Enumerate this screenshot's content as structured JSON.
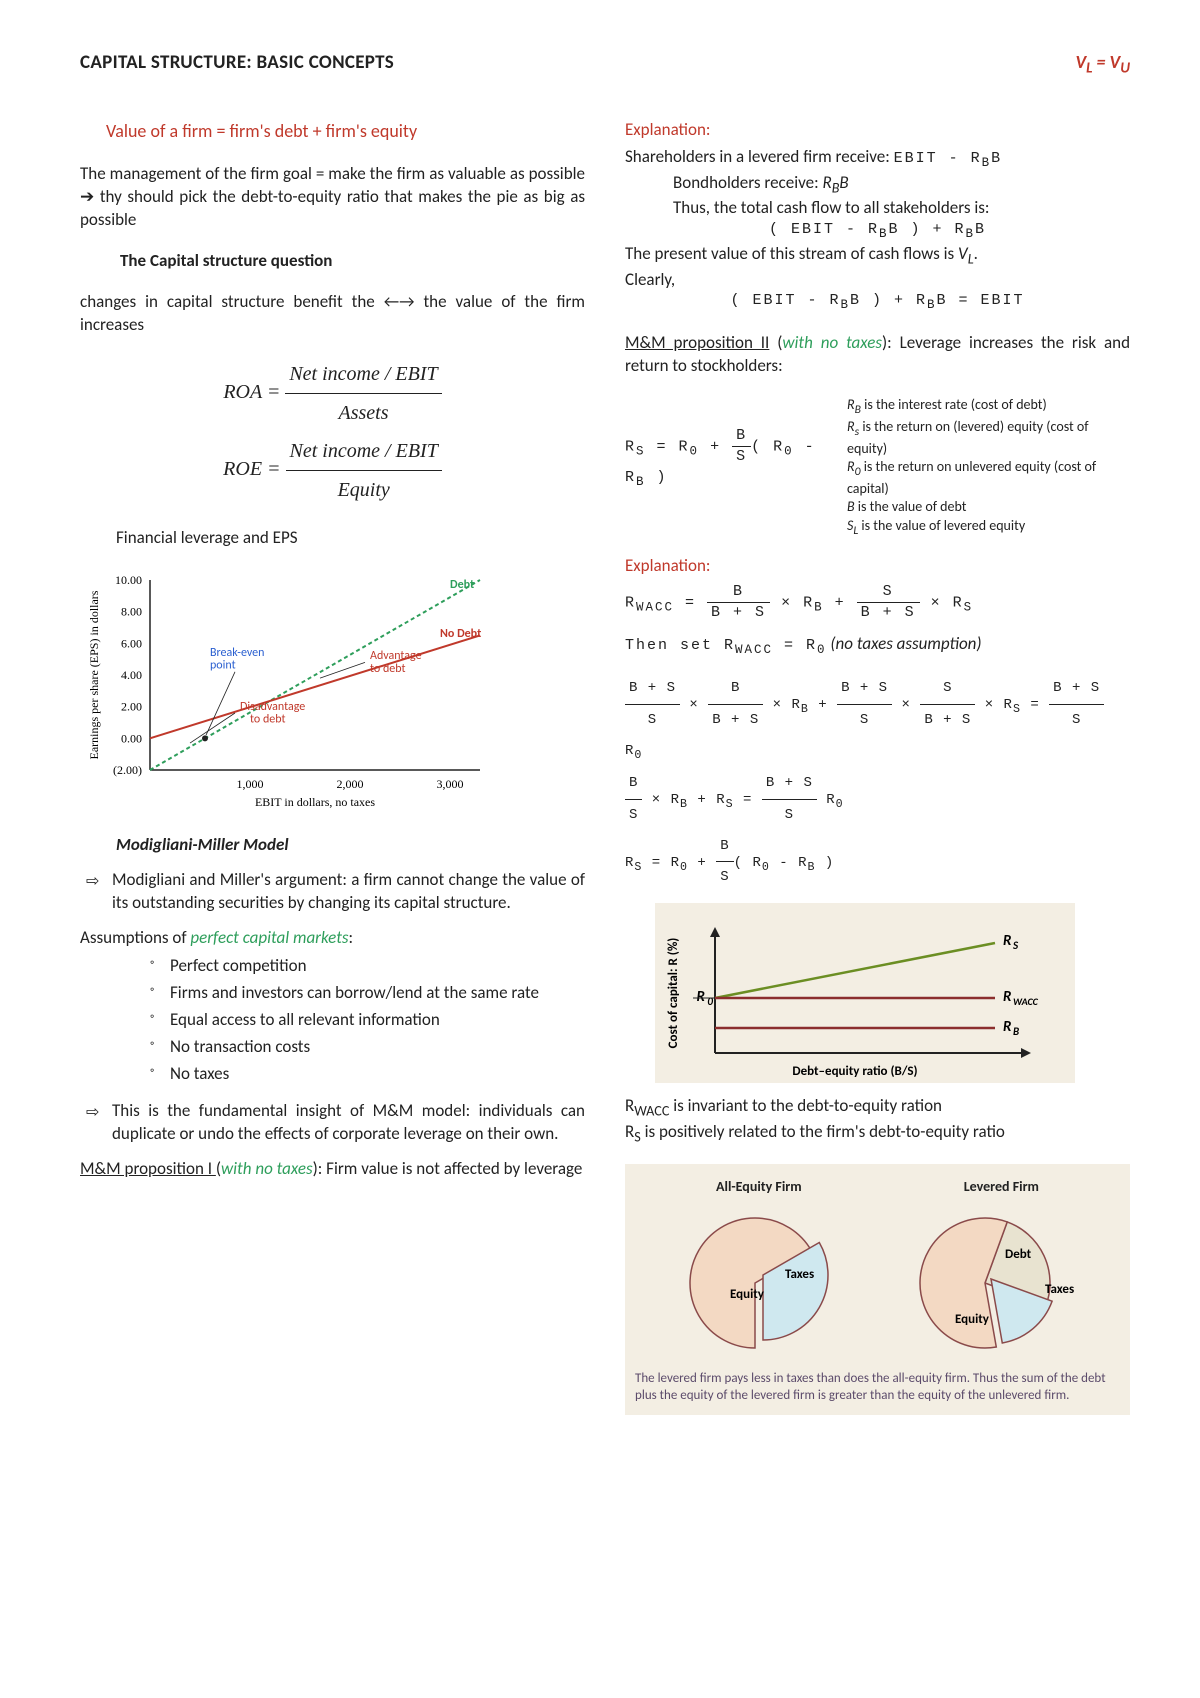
{
  "header": {
    "title": "CAPITAL STRUCTURE: BASIC CONCEPTS",
    "equation": "V<sub>L</sub> = V<sub>U</sub>"
  },
  "left": {
    "value_formula": "Value of a firm = firm's debt + firm's equity",
    "mgmt_para": "The management of the firm goal = make the firm as valuable as possible ➔ thy should pick the debt-to-equity ratio that makes the pie as big as possible",
    "cs_question": "The Capital structure question",
    "changes_para": "changes in capital structure benefit the ←→ the value of the firm increases",
    "roa_label": "ROA =",
    "roa_num": "Net income / EBIT",
    "roa_den": "Assets",
    "roe_label": "ROE =",
    "roe_num": "Net income / EBIT",
    "roe_den": "Equity",
    "leverage_caption": "Financial leverage and EPS",
    "chart": {
      "y_label": "Earnings per share (EPS) in dollars",
      "x_label": "EBIT in dollars, no taxes",
      "y_ticks": [
        "10.00",
        "8.00",
        "6.00",
        "4.00",
        "2.00",
        "0.00",
        "(2.00)"
      ],
      "x_ticks": [
        "1,000",
        "2,000",
        "3,000"
      ],
      "labels": {
        "debt": "Debt",
        "no_debt": "No Debt",
        "breakeven": "Break-even point",
        "advantage": "Advantage to debt",
        "disadvantage": "Disadvantage to debt"
      },
      "colors": {
        "debt_line": "#2e9e5b",
        "nodebt_line": "#c0392b",
        "breakeven": "#2a5fd0",
        "advantage": "#c0392b",
        "disadvantage": "#c0392b",
        "axis": "#222"
      }
    },
    "mm_heading": "Modigliani-Miller Model",
    "mm_argument": "Modigliani and Miller's argument:  a firm cannot change the value of its outstanding securities by changing its capital structure.",
    "assumptions_intro_a": "Assumptions of ",
    "assumptions_intro_b": "perfect capital markets",
    "assumptions_intro_c": ":",
    "assumptions": [
      "Perfect competition",
      "Firms and investors can borrow/lend at the same rate",
      "Equal access to all relevant information",
      "No transaction costs",
      "No taxes"
    ],
    "mm_insight": "This is the fundamental insight of M&M model: individuals can duplicate or undo the effects of corporate leverage on their own.",
    "prop1_a": "M&M proposition I ",
    "prop1_b": "(",
    "prop1_c": "with no taxes",
    "prop1_d": "): Firm value is not affected by leverage"
  },
  "right": {
    "exp_label": "Explanation:",
    "shareholders": "Shareholders in a levered firm receive:",
    "shareholders_eq": "EBIT - R<sub>B</sub>B",
    "bondholders": "Bondholders receive: ",
    "bondholders_eq": "R<sub>B</sub>B",
    "thus": "Thus, the total cash flow to all stakeholders is:",
    "total_eq": "( EBIT - R<sub>B</sub>B ) + R<sub>B</sub>B",
    "pv_line": "The present value of this stream of cash flows is <i>V<sub>L</sub></i>.",
    "clearly": "Clearly,",
    "clearly_eq": "( EBIT - R<sub>B</sub>B ) + R<sub>B</sub>B = EBIT",
    "prop2_a": "M&M proposition II",
    "prop2_b": " (",
    "prop2_c": "with no taxes",
    "prop2_d": "): Leverage increases the risk and return to stockholders:",
    "rs_eq": "R<sub>S</sub> = R<sub>0</sub> + (B/S)(R<sub>0</sub> - R<sub>B</sub>)",
    "rb_note": "<i>R<sub>B</sub></i> is the interest rate (cost of debt)",
    "rs_note": "<i>R<sub>s</sub></i> is the return on (levered) equity (cost of equity)",
    "r0_note": "<i>R<sub>0</sub></i> is the return on unlevered equity (cost of capital)",
    "b_note": "<i>B</i> is the value of debt",
    "sl_note": "<i>S<sub>L</sub></i> is the value of levered equity",
    "wacc_eq": "R<sub>WACC</sub> = (B/(B+S)) × R<sub>B</sub> + (S/(B+S)) × R<sub>S</sub>",
    "thenset_a": "Then set R<sub>WACC</sub> = R<sub>0</sub>",
    "thenset_b": "  (no taxes assumption)",
    "deriv_1": "((B+S)/S) × (B/(B+S)) × R<sub>B</sub> + ((B+S)/S) × (S/(B+S)) × R<sub>S</sub> = ((B+S)/S) R<sub>0</sub>",
    "deriv_2": "(B/S) × R<sub>B</sub> + R<sub>S</sub> = ((B+S)/S) R<sub>0</sub>",
    "deriv_3": "R<sub>S</sub> = R<sub>0</sub> + (B/S)(R<sub>0</sub> - R<sub>B</sub>)",
    "wacc_chart": {
      "y_label": "Cost of capital: R (%)",
      "x_label": "Debt–equity ratio (B/S)",
      "rs": "R<sub>S</sub>",
      "r0": "R<sub>0</sub>",
      "rwacc": "R<sub>WACC</sub>",
      "rb": "R<sub>B</sub>",
      "colors": {
        "rs": "#6b8e23",
        "rwacc": "#8b2e2e",
        "rb": "#8b2e2e",
        "bg": "#f3eee3"
      }
    },
    "rwacc_text": "R<sub>WACC</sub> is invariant to the debt-to-equity ration",
    "rs_text": "R<sub>S</sub> is positively related to the firm's debt-to-equity ratio",
    "pie": {
      "title_left": "All-Equity Firm",
      "title_right": "Levered Firm",
      "equity": "Equity",
      "taxes": "Taxes",
      "debt": "Debt",
      "caption": "The levered firm pays less in taxes than does the all-equity firm. Thus the sum of the debt plus the equity of the levered firm is greater than the equity of the unlevered firm.",
      "colors": {
        "equity": "#f3d9c3",
        "taxes": "#cfe8ef",
        "debt": "#e8e3d0",
        "stroke": "#8a4a4a"
      }
    }
  }
}
